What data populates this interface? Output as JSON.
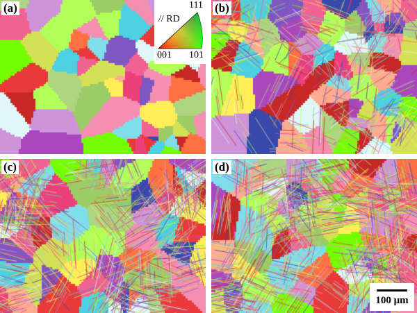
{
  "panels": [
    {
      "label": "(a)",
      "twin_density": 0
    },
    {
      "label": "(b)",
      "twin_density": 0.35
    },
    {
      "label": "(c)",
      "twin_density": 0.8
    },
    {
      "label": "(d)",
      "twin_density": 1
    }
  ],
  "legend": {
    "direction": "// RD",
    "corner_top": "111",
    "corner_left": "001",
    "corner_right": "101"
  },
  "scale_bar": {
    "label": "100 μm"
  }
}
